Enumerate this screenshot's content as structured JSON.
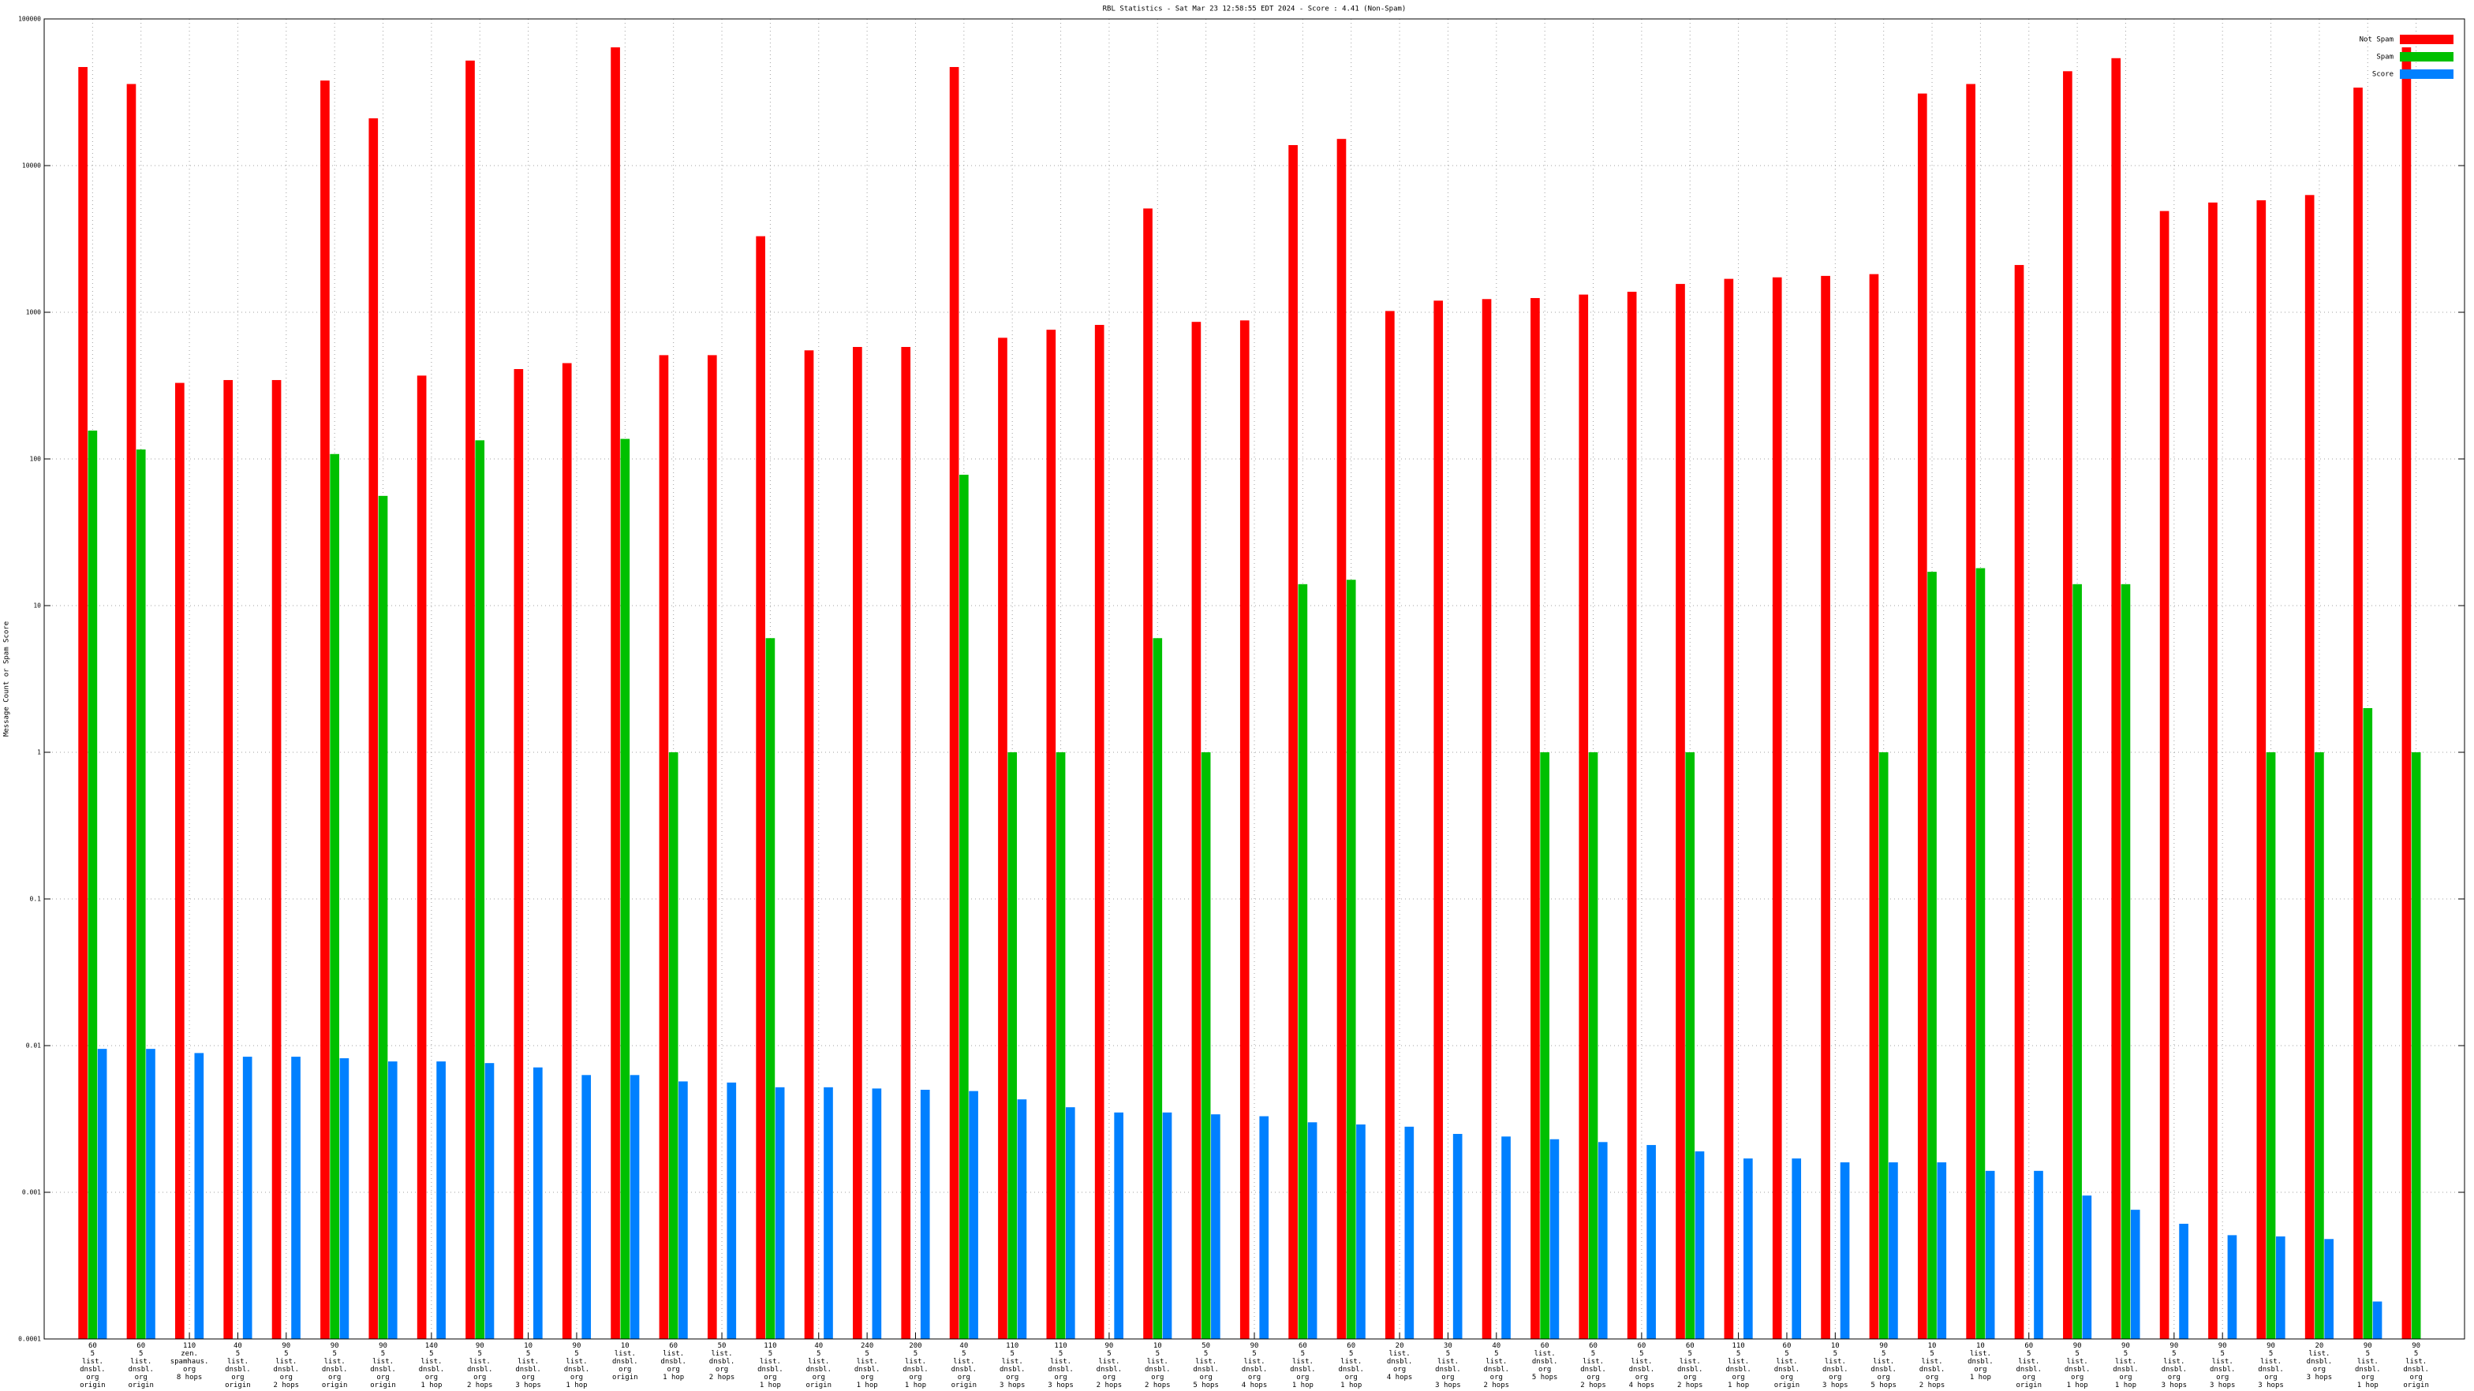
{
  "chart_data": {
    "type": "bar",
    "title": "RBL Statistics - Sat Mar 23 12:58:55 EDT 2024 - Score : 4.41 (Non-Spam)",
    "y_label": "Message Count or Spam Score",
    "log_scale": true,
    "grid": true,
    "legend": "top-right",
    "ylim": [
      0.0001,
      100000
    ],
    "yticks": [
      0.0001,
      0.001,
      0.01,
      0.1,
      1,
      10,
      100,
      1000,
      10000,
      100000
    ],
    "categories": [
      "60\n5\nlist.\ndnsbl.\norg\norigin",
      "60\n5\nlist.\ndnsbl.\norg\norigin",
      "110\nzen.\nspamhaus.\norg\n8 hops",
      "40\n5\nlist.\ndnsbl.\norg\norigin",
      "90\n5\nlist.\ndnsbl.\norg\n2 hops",
      "90\n5\nlist.\ndnsbl.\norg\norigin",
      "90\n5\nlist.\ndnsbl.\norg\norigin",
      "140\n5\nlist.\ndnsbl.\norg\n1 hop",
      "90\n5\nlist.\ndnsbl.\norg\n2 hops",
      "10\n5\nlist.\ndnsbl.\norg\n3 hops",
      "90\n5\nlist.\ndnsbl.\norg\n1 hop",
      "10\nlist.\ndnsbl.\norg\norigin",
      "60\nlist.\ndnsbl.\norg\n1 hop",
      "50\nlist.\ndnsbl.\norg\n2 hops",
      "110\n5\nlist.\ndnsbl.\norg\n1 hop",
      "40\n5\nlist.\ndnsbl.\norg\norigin",
      "240\n5\nlist.\ndnsbl.\norg\n1 hop",
      "200\n5\nlist.\ndnsbl.\norg\n1 hop",
      "40\n5\nlist.\ndnsbl.\norg\norigin",
      "110\n5\nlist.\ndnsbl.\norg\n3 hops",
      "110\n5\nlist.\ndnsbl.\norg\n3 hops",
      "90\n5\nlist.\ndnsbl.\norg\n2 hops",
      "10\n5\nlist.\ndnsbl.\norg\n2 hops",
      "50\n5\nlist.\ndnsbl.\norg\n5 hops",
      "90\n5\nlist.\ndnsbl.\norg\n4 hops",
      "60\n5\nlist.\ndnsbl.\norg\n1 hop",
      "60\n5\nlist.\ndnsbl.\norg\n1 hop",
      "20\nlist.\ndnsbl.\norg\n4 hops",
      "30\n5\nlist.\ndnsbl.\norg\n3 hops",
      "40\n5\nlist.\ndnsbl.\norg\n2 hops",
      "60\nlist.\ndnsbl.\norg\n5 hops",
      "60\n5\nlist.\ndnsbl.\norg\n2 hops",
      "60\n5\nlist.\ndnsbl.\norg\n4 hops",
      "60\n5\nlist.\ndnsbl.\norg\n2 hops",
      "110\n5\nlist.\ndnsbl.\norg\n1 hop",
      "60\n5\nlist.\ndnsbl.\norg\norigin",
      "10\n5\nlist.\ndnsbl.\norg\n3 hops",
      "90\n5\nlist.\ndnsbl.\norg\n5 hops",
      "10\n5\nlist.\ndnsbl.\norg\n2 hops",
      "10\nlist.\ndnsbl.\norg\n1 hop",
      "60\n5\nlist.\ndnsbl.\norg\norigin",
      "90\n5\nlist.\ndnsbl.\norg\n1 hop",
      "90\n5\nlist.\ndnsbl.\norg\n1 hop",
      "90\n5\nlist.\ndnsbl.\norg\n3 hops",
      "90\n5\nlist.\ndnsbl.\norg\n3 hops",
      "90\n5\nlist.\ndnsbl.\norg\n3 hops",
      "20\nlist.\ndnsbl.\norg\n3 hops",
      "90\n5\nlist.\ndnsbl.\norg\n1 hop",
      "90\n5\nlist.\ndnsbl.\norg\norigin"
    ],
    "series": [
      {
        "name": "Not Spam",
        "color": "#ff0000",
        "values": [
          47000,
          36000,
          330,
          345,
          345,
          38000,
          21000,
          370,
          52000,
          410,
          450,
          64000,
          510,
          510,
          3300,
          550,
          580,
          580,
          47000,
          670,
          760,
          820,
          5100,
          860,
          880,
          13800,
          15200,
          1020,
          1200,
          1230,
          1250,
          1320,
          1380,
          1560,
          1690,
          1730,
          1770,
          1820,
          31000,
          36000,
          2100,
          44000,
          54000,
          4900,
          5600,
          5800,
          6300,
          34000,
          64000
        ]
      },
      {
        "name": "Spam",
        "color": "#00c000",
        "values": [
          156,
          116,
          null,
          null,
          null,
          108,
          56,
          null,
          134,
          null,
          null,
          137,
          1,
          null,
          6,
          null,
          null,
          null,
          78,
          1,
          1,
          null,
          6,
          1,
          null,
          14,
          15,
          null,
          null,
          null,
          1,
          1,
          null,
          1,
          null,
          null,
          null,
          1,
          17,
          18,
          null,
          14,
          14,
          null,
          null,
          1,
          1,
          2,
          1
        ]
      },
      {
        "name": "Score",
        "color": "#0080ff",
        "values": [
          0.0095,
          0.0095,
          0.0089,
          0.0084,
          0.0084,
          0.0082,
          0.0078,
          0.0078,
          0.0076,
          0.0071,
          0.0063,
          0.0063,
          0.0057,
          0.0056,
          0.0052,
          0.0052,
          0.0051,
          0.005,
          0.0049,
          0.0043,
          0.0038,
          0.0035,
          0.0035,
          0.0034,
          0.0033,
          0.003,
          0.0029,
          0.0028,
          0.0025,
          0.0024,
          0.0023,
          0.0022,
          0.0021,
          0.0019,
          0.0017,
          0.0017,
          0.0016,
          0.0016,
          0.0016,
          0.0014,
          0.0014,
          0.00095,
          0.00076,
          0.00061,
          0.00051,
          0.0005,
          0.00048,
          0.00018,
          null
        ]
      }
    ]
  }
}
